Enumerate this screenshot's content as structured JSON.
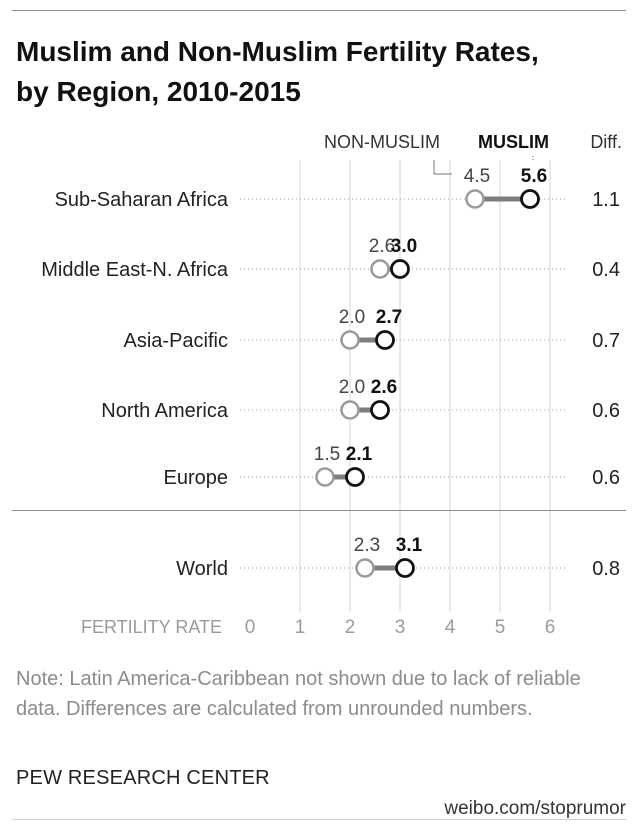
{
  "title_line1": "Muslim and Non-Muslim Fertility Rates,",
  "title_line2": "by Region, 2010-2015",
  "note": "Note: Latin America-Caribbean not shown due to lack of reliable data. Differences are calculated from unrounded numbers.",
  "source": "PEW RESEARCH CENTER",
  "watermark": "weibo.com/stoprumor",
  "colors": {
    "muslim": "#111111",
    "non_muslim": "#9a9a9a",
    "connector": "#7d7d7d",
    "grid": "#bfbfbf"
  },
  "chart_data": {
    "type": "dot",
    "header_non_muslim": "NON-MUSLIM",
    "header_muslim": "MUSLIM",
    "header_diff": "Diff.",
    "xlabel": "FERTILITY RATE",
    "xlim": [
      0,
      6
    ],
    "xticks": [
      "0",
      "1",
      "2",
      "3",
      "4",
      "5",
      "6"
    ],
    "categories": [
      "Sub-Saharan Africa",
      "Middle East-N. Africa",
      "Asia-Pacific",
      "North America",
      "Europe",
      "World"
    ],
    "series": [
      {
        "name": "NON-MUSLIM",
        "values": [
          4.5,
          2.6,
          2.0,
          2.0,
          1.5,
          2.3
        ],
        "labels": [
          "4.5",
          "2.6",
          "2.0",
          "2.0",
          "1.5",
          "2.3"
        ]
      },
      {
        "name": "MUSLIM",
        "values": [
          5.6,
          3.0,
          2.7,
          2.6,
          2.1,
          3.1
        ],
        "labels": [
          "5.6",
          "3.0",
          "2.7",
          "2.6",
          "2.1",
          "3.1"
        ]
      }
    ],
    "diff": [
      "1.1",
      "0.4",
      "0.7",
      "0.6",
      "0.6",
      "0.8"
    ]
  }
}
